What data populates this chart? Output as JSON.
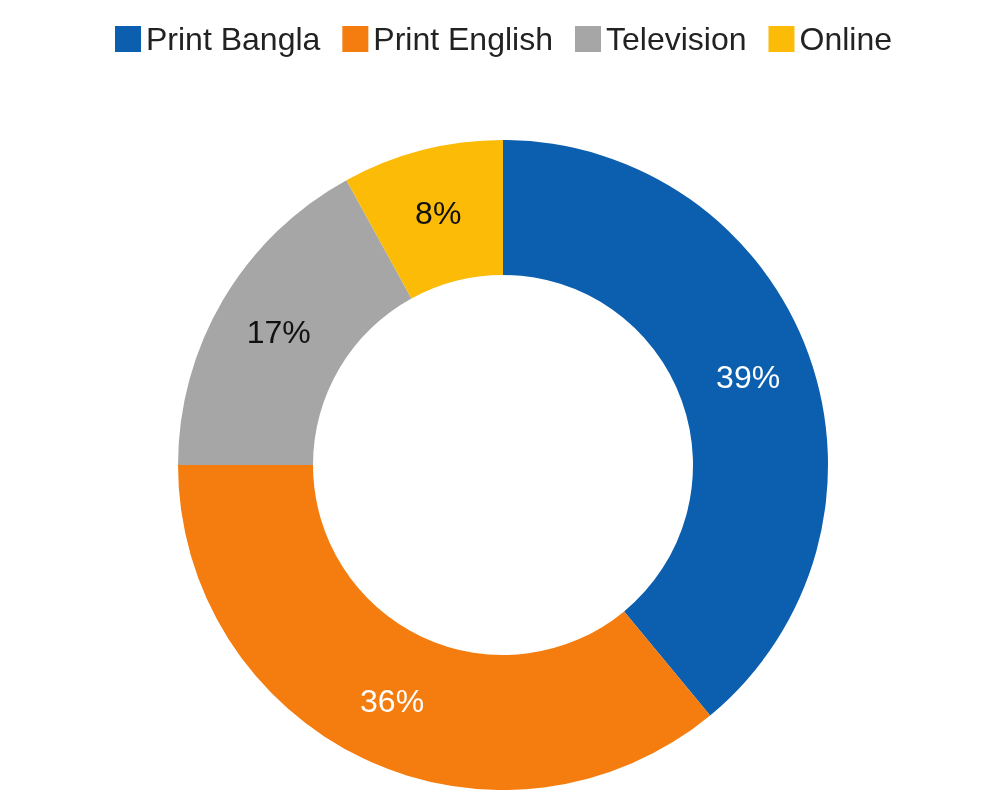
{
  "chart_data": {
    "type": "donut",
    "categories": [
      "Print Bangla",
      "Print English",
      "Television",
      "Online"
    ],
    "values": [
      39,
      36,
      17,
      8
    ],
    "colors": [
      "#0b5fae",
      "#f57d0f",
      "#a6a6a6",
      "#fbbb07"
    ],
    "value_labels": [
      "39%",
      "36%",
      "17%",
      "8%"
    ],
    "legend": "top"
  }
}
